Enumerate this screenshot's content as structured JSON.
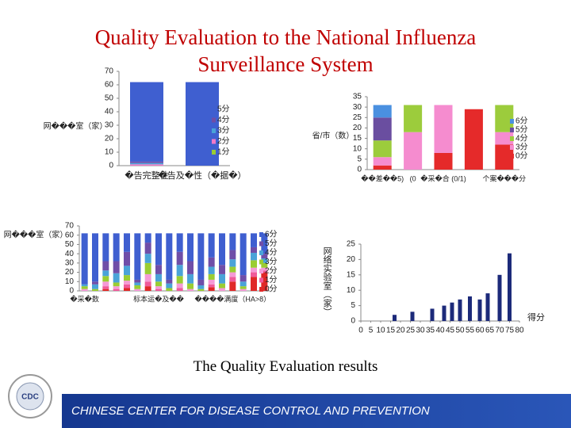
{
  "title": "Quality Evaluation to the National Influenza Surveillance System",
  "caption": "The Quality Evaluation results",
  "footer": "CHINESE CENTER FOR DISEASE CONTROL AND PREVENTION",
  "logo": "CDC",
  "chart_data": [
    {
      "type": "bar",
      "stacked": true,
      "ylabel": "网���室（家）",
      "categories": [
        "�告完整性",
        "�告及�性（�据�）"
      ],
      "ylim": [
        0,
        70
      ],
      "yticks": [
        0,
        10,
        20,
        30,
        40,
        50,
        60,
        70
      ],
      "series": [
        {
          "name": "1分",
          "color": "#9acd32",
          "values": [
            0,
            0
          ]
        },
        {
          "name": "2分",
          "color": "#f27ac8",
          "values": [
            1,
            0
          ]
        },
        {
          "name": "3分",
          "color": "#4aa3d8",
          "values": [
            1,
            0
          ]
        },
        {
          "name": "4分",
          "color": "#6f4ea8",
          "values": [
            1,
            0
          ]
        },
        {
          "name": "5分",
          "color": "#3f5fd0",
          "values": [
            59,
            62
          ]
        }
      ]
    },
    {
      "type": "bar",
      "stacked": true,
      "ylabel": "省/市（数）",
      "categories": [
        "��差��5)",
        "(0",
        "�采�合 (0/1)",
        null,
        "个案���分"
      ],
      "ylim": [
        0,
        35
      ],
      "yticks": [
        0,
        5,
        10,
        15,
        20,
        25,
        30,
        35
      ],
      "series": [
        {
          "name": "0分",
          "color": "#e52a2a",
          "values": [
            2,
            0,
            8,
            29,
            12
          ]
        },
        {
          "name": "3分",
          "color": "#f58ccf",
          "values": [
            4,
            18,
            23,
            0,
            6
          ]
        },
        {
          "name": "4分",
          "color": "#9ccc3c",
          "values": [
            8,
            13,
            0,
            0,
            13
          ]
        },
        {
          "name": "5分",
          "color": "#6a4ea0",
          "values": [
            11,
            0,
            0,
            0,
            0
          ]
        },
        {
          "name": "6分",
          "color": "#4a90e0",
          "values": [
            6,
            0,
            0,
            0,
            0
          ]
        }
      ]
    },
    {
      "type": "bar",
      "stacked": true,
      "ylabel": "网���室（家）",
      "categories": [
        "�采�数",
        null,
        null,
        null,
        null,
        null,
        null,
        "标本运�及��",
        null,
        null,
        null,
        null,
        null,
        null,
        "����满度（HA>8）",
        null,
        null,
        null
      ],
      "ylim": [
        0,
        70
      ],
      "yticks": [
        0,
        10,
        20,
        30,
        40,
        50,
        60,
        70
      ],
      "series": [
        {
          "name": "0分",
          "color": "#e02828",
          "values": [
            0,
            0,
            2,
            0,
            3,
            0,
            5,
            0,
            0,
            0,
            0,
            0,
            4,
            0,
            10,
            0,
            15,
            20
          ]
        },
        {
          "name": "1分",
          "color": "#f05a9a",
          "values": [
            0,
            0,
            3,
            2,
            4,
            0,
            5,
            2,
            0,
            3,
            0,
            0,
            3,
            0,
            5,
            0,
            5,
            2
          ]
        },
        {
          "name": "2分",
          "color": "#f59ad6",
          "values": [
            2,
            0,
            5,
            3,
            4,
            2,
            8,
            3,
            0,
            5,
            2,
            0,
            5,
            3,
            5,
            2,
            5,
            3
          ]
        },
        {
          "name": "3分",
          "color": "#9acd32",
          "values": [
            3,
            2,
            6,
            4,
            6,
            4,
            12,
            5,
            3,
            8,
            6,
            2,
            6,
            5,
            6,
            3,
            8,
            5
          ]
        },
        {
          "name": "4分",
          "color": "#4aa3d8",
          "values": [
            2,
            5,
            6,
            10,
            10,
            3,
            10,
            8,
            5,
            12,
            10,
            4,
            8,
            10,
            8,
            5,
            8,
            5
          ]
        },
        {
          "name": "5分",
          "color": "#6f4ea8",
          "values": [
            0,
            3,
            10,
            13,
            15,
            3,
            12,
            10,
            4,
            14,
            14,
            6,
            10,
            10,
            10,
            7,
            6,
            5
          ]
        },
        {
          "name": "6分",
          "color": "#3f5fd0",
          "values": [
            55,
            52,
            30,
            30,
            20,
            50,
            10,
            34,
            50,
            20,
            30,
            50,
            26,
            34,
            18,
            45,
            15,
            22
          ]
        }
      ]
    },
    {
      "type": "bar",
      "ylabel": "网络实验室（家）",
      "xlabel": "得分",
      "color": "#1c2a7a",
      "x": [
        17,
        26,
        36,
        42,
        46,
        50,
        55,
        60,
        64,
        70,
        75
      ],
      "values": [
        2,
        3,
        4,
        5,
        6,
        7,
        8,
        7,
        9,
        15,
        22
      ],
      "xlim": [
        0,
        80
      ],
      "xticks": [
        0,
        5,
        10,
        15,
        20,
        25,
        30,
        35,
        40,
        45,
        50,
        55,
        60,
        65,
        70,
        75,
        80
      ],
      "ylim": [
        0,
        25
      ],
      "yticks": [
        0,
        5,
        10,
        15,
        20,
        25
      ]
    }
  ]
}
